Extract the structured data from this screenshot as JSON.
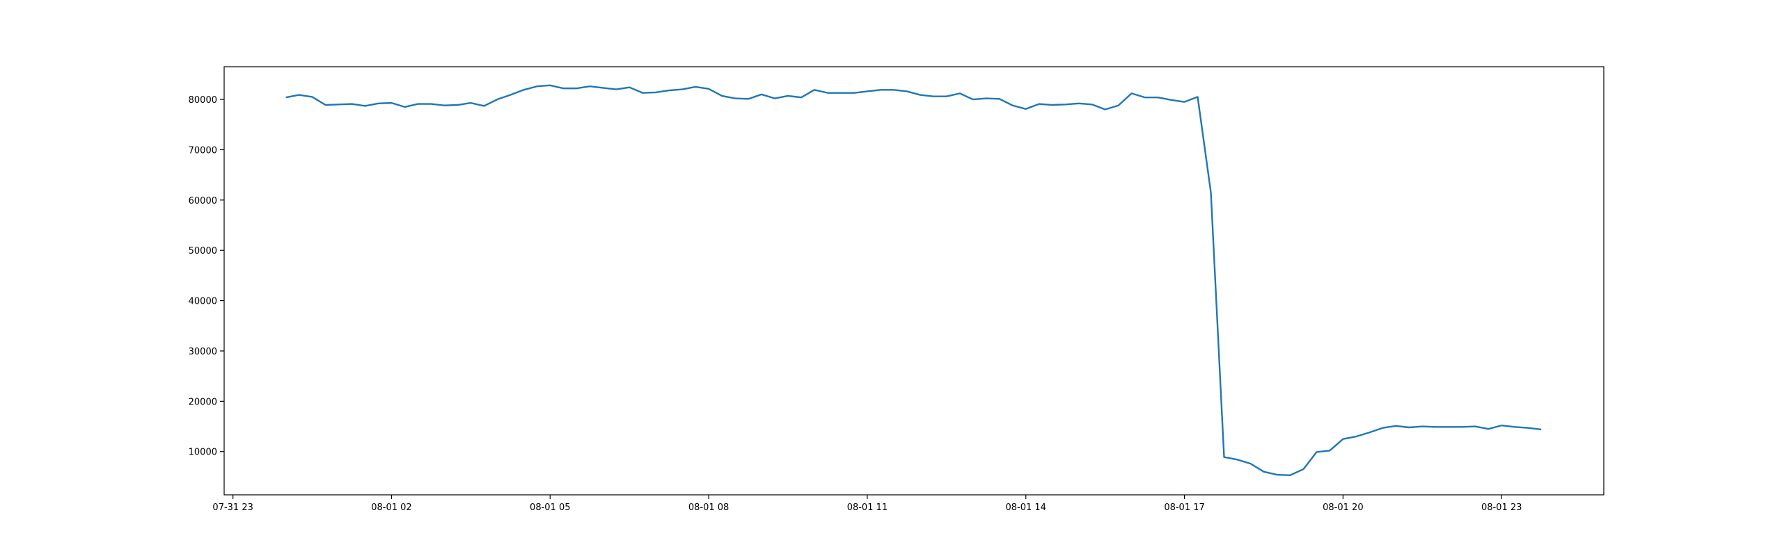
{
  "chart_data": {
    "type": "line",
    "x": [
      "08-01 00:00",
      "08-01 00:15",
      "08-01 00:30",
      "08-01 00:45",
      "08-01 01:00",
      "08-01 01:15",
      "08-01 01:30",
      "08-01 01:45",
      "08-01 02:00",
      "08-01 02:15",
      "08-01 02:30",
      "08-01 02:45",
      "08-01 03:00",
      "08-01 03:15",
      "08-01 03:30",
      "08-01 03:45",
      "08-01 04:00",
      "08-01 04:15",
      "08-01 04:30",
      "08-01 04:45",
      "08-01 05:00",
      "08-01 05:15",
      "08-01 05:30",
      "08-01 05:45",
      "08-01 06:00",
      "08-01 06:15",
      "08-01 06:30",
      "08-01 06:45",
      "08-01 07:00",
      "08-01 07:15",
      "08-01 07:30",
      "08-01 07:45",
      "08-01 08:00",
      "08-01 08:15",
      "08-01 08:30",
      "08-01 08:45",
      "08-01 09:00",
      "08-01 09:15",
      "08-01 09:30",
      "08-01 09:45",
      "08-01 10:00",
      "08-01 10:15",
      "08-01 10:30",
      "08-01 10:45",
      "08-01 11:00",
      "08-01 11:15",
      "08-01 11:30",
      "08-01 11:45",
      "08-01 12:00",
      "08-01 12:15",
      "08-01 12:30",
      "08-01 12:45",
      "08-01 13:00",
      "08-01 13:15",
      "08-01 13:30",
      "08-01 13:45",
      "08-01 14:00",
      "08-01 14:15",
      "08-01 14:30",
      "08-01 14:45",
      "08-01 15:00",
      "08-01 15:15",
      "08-01 15:30",
      "08-01 15:45",
      "08-01 16:00",
      "08-01 16:15",
      "08-01 16:30",
      "08-01 16:45",
      "08-01 17:00",
      "08-01 17:15",
      "08-01 17:30",
      "08-01 17:45",
      "08-01 18:00",
      "08-01 18:15",
      "08-01 18:30",
      "08-01 18:45",
      "08-01 19:00",
      "08-01 19:15",
      "08-01 19:30",
      "08-01 19:45",
      "08-01 20:00",
      "08-01 20:15",
      "08-01 20:30",
      "08-01 20:45",
      "08-01 21:00",
      "08-01 21:15",
      "08-01 21:30",
      "08-01 21:45",
      "08-01 22:00",
      "08-01 22:15",
      "08-01 22:30",
      "08-01 22:45",
      "08-01 23:00",
      "08-01 23:15",
      "08-01 23:30",
      "08-01 23:45"
    ],
    "series": [
      {
        "color": "#1f77b4",
        "values": [
          80400,
          80900,
          80500,
          78900,
          79000,
          79100,
          78700,
          79200,
          79300,
          78500,
          79100,
          79100,
          78800,
          78900,
          79300,
          78700,
          80000,
          80900,
          81900,
          82600,
          82800,
          82200,
          82200,
          82600,
          82300,
          82000,
          82400,
          81300,
          81400,
          81800,
          82000,
          82500,
          82100,
          80700,
          80200,
          80100,
          81000,
          80200,
          80700,
          80400,
          81900,
          81300,
          81300,
          81300,
          81600,
          81900,
          81900,
          81600,
          80900,
          80600,
          80600,
          81200,
          80000,
          80200,
          80100,
          78800,
          78100,
          79100,
          78900,
          79000,
          79200,
          79000,
          78000,
          78800,
          81200,
          80400,
          80400,
          79900,
          79500,
          80500,
          61500,
          8900,
          8400,
          7600,
          6000,
          5400,
          5300,
          6500,
          9900,
          10200,
          12500,
          13000,
          13800,
          14700,
          15100,
          14800,
          15000,
          14900,
          14900,
          14900,
          15000,
          14500,
          15200,
          14900,
          14700,
          14400
        ]
      }
    ],
    "xlim": [
      "07-31 22:50",
      "08-02 00:56"
    ],
    "xticks": [
      "07-31 23",
      "08-01 02",
      "08-01 05",
      "08-01 08",
      "08-01 11",
      "08-01 14",
      "08-01 17",
      "08-01 20",
      "08-01 23"
    ],
    "ylim": [
      1400,
      86500
    ],
    "yticks": [
      10000,
      20000,
      30000,
      40000,
      50000,
      60000,
      70000,
      80000
    ]
  }
}
